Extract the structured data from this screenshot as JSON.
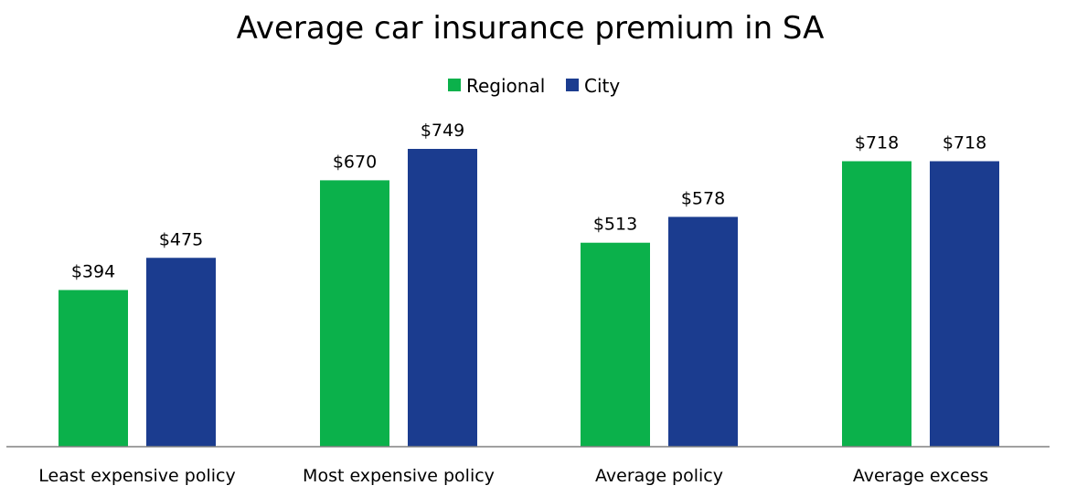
{
  "chart_data": {
    "type": "bar",
    "title": "Average car insurance premium in SA",
    "xlabel": "",
    "ylabel": "",
    "ylim": [
      0,
      749
    ],
    "grid": false,
    "legend_position": "top-center",
    "categories": [
      "Least expensive policy",
      "Most expensive policy",
      "Average policy",
      "Average excess"
    ],
    "series": [
      {
        "name": "Regional",
        "color": "#0BB14B",
        "values": [
          394,
          670,
          513,
          718
        ],
        "labels": [
          "$394",
          "$670",
          "$513",
          "$718"
        ]
      },
      {
        "name": "City",
        "color": "#1B3C8F",
        "values": [
          475,
          749,
          578,
          718
        ],
        "labels": [
          "$475",
          "$749",
          "$578",
          "$718"
        ]
      }
    ]
  }
}
